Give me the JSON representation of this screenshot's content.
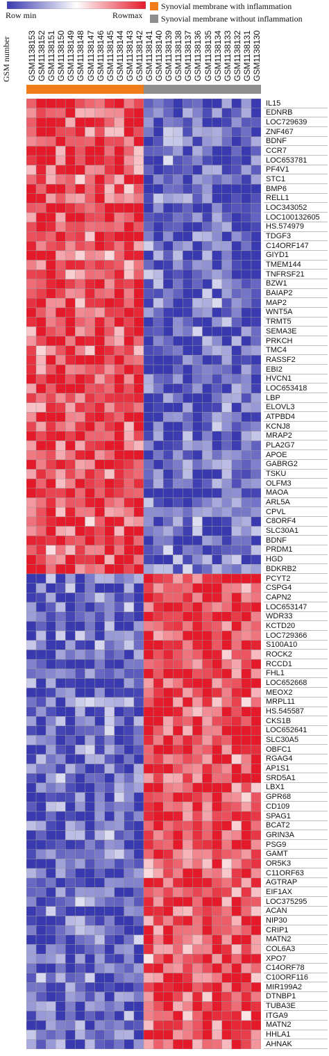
{
  "chart_data": {
    "type": "heatmap",
    "title": "",
    "color_scale": {
      "min_label": "Row min",
      "max_label": "Rowmax",
      "min_color": "#3a3ab0",
      "mid_color": "#ffffff",
      "max_color": "#e41a2a"
    },
    "column_axis_label": "GSM number",
    "columns": [
      "GSM1138153",
      "GSM1138152",
      "GSM1138151",
      "GSM1138150",
      "GSM1138149",
      "GSM1138148",
      "GSM1138147",
      "GSM1138146",
      "GSM1138145",
      "GSM1138144",
      "GSM1138143",
      "GSM1138142",
      "GSM1138141",
      "GSM1138140",
      "GSM1138139",
      "GSM1138138",
      "GSM1138137",
      "GSM1138136",
      "GSM1138135",
      "GSM1138134",
      "GSM1138133",
      "GSM1138132",
      "GSM1138131",
      "GSM1138130"
    ],
    "groups": [
      {
        "name": "Synovial membrane with inflammation",
        "color": "#f07d1a",
        "count": 12
      },
      {
        "name": "Synovial membrane without inflammation",
        "color": "#8e8e8e",
        "count": 12
      }
    ],
    "rows": [
      "IL15",
      "EDNRB",
      "LOC729639",
      "ZNF467",
      "BDNF",
      "CCR7",
      "LOC653781",
      "PF4V1",
      "STC1",
      "BMP6",
      "RELL1",
      "LOC343052",
      "LOC100132605",
      "HS.574979",
      "TDGF3",
      "C14ORF147",
      "GIYD1",
      "TMEM144",
      "TNFRSF21",
      "BZW1",
      "BAIAP2",
      "MAP2",
      "WNT5A",
      "TRMT5",
      "SEMA3E",
      "PRKCH",
      "TMC4",
      "RASSF2",
      "EBI2",
      "HVCN1",
      "LOC653418",
      "LBP",
      "ELOVL3",
      "ATPBD4",
      "KCNJ8",
      "MRAP2",
      "PLA2G7",
      "APOE",
      "GABRG2",
      "TSKU",
      "OLFM3",
      "MAOA",
      "ARL5A",
      "CPVL",
      "C8ORF4",
      "SLC30A1",
      "BDNF",
      "PRDM1",
      "HGD",
      "BDKRB2",
      "PCYT2",
      "CSPG4",
      "CAPN2",
      "LOC653147",
      "WDR33",
      "KCTD20",
      "LOC729366",
      "S100A10",
      "ROCK2",
      "RCCD1",
      "FHL1",
      "LOC652668",
      "MEOX2",
      "MRPL11",
      "HS.545587",
      "CKS1B",
      "LOC652641",
      "SLC30A5",
      "OBFC1",
      "RGAG4",
      "AP1S1",
      "SRD5A1",
      "LBX1",
      "GPR68",
      "CD109",
      "SPAG1",
      "BCAT2",
      "GRIN3A",
      "PSG9",
      "GAMT",
      "OR5K3",
      "C11ORF63",
      "AGTRAP",
      "EIF1AX",
      "LOC375295",
      "ACAN",
      "NIP30",
      "CRIP1",
      "MATN2",
      "COL6A3",
      "XPO7",
      "C14ORF78",
      "C10ORF116",
      "MIR199A2",
      "DTNBP1",
      "TUBA3E",
      "ITGA9",
      "MATN2",
      "HHLA1",
      "AHNAK"
    ],
    "up_in_inflamed_rows": 50
  }
}
